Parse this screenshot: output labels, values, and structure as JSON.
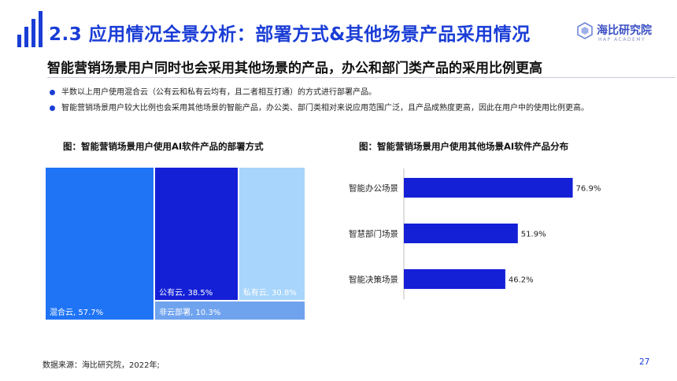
{
  "header": {
    "title": "2.3 应用情况全景分析：部署方式&其他场景产品采用情况",
    "logo_name": "海比研究院",
    "logo_sub": "HAP ACADEMY"
  },
  "subtitle": "智能营销场景用户同时也会采用其他场景的产品，办公和部门类产品的采用比例更高",
  "bullets": [
    "半数以上用户使用混合云（公有云和私有云均有，且二者相互打通）的方式进行部署产品。",
    "智能营销场景用户较大比例也会采用其他场景的智能产品，办公类、部门类相对来说应用范围广泛，且产品成熟度更高，因此在用户中的使用比例更高。"
  ],
  "chart_data": [
    {
      "type": "treemap",
      "title": "图：智能营销场景用户使用AI软件产品的部署方式",
      "items": [
        {
          "label": "混合云, 57.7%",
          "name": "混合云",
          "value": 57.7,
          "color": "#1f74f5"
        },
        {
          "label": "公有云, 38.5%",
          "name": "公有云",
          "value": 38.5,
          "color": "#1420d6"
        },
        {
          "label": "私有云, 30.8%",
          "name": "私有云",
          "value": 30.8,
          "color": "#a8d5fb"
        },
        {
          "label": "非云部署, 10.3%",
          "name": "非云部署",
          "value": 10.3,
          "color": "#6fa3ee"
        }
      ]
    },
    {
      "type": "bar",
      "orientation": "horizontal",
      "title": "图：智能营销场景用户使用其他场景AI软件产品分布",
      "categories": [
        "智能办公场景",
        "智慧部门场景",
        "智能决策场景"
      ],
      "values": [
        76.9,
        51.9,
        46.2
      ],
      "value_labels": [
        "76.9%",
        "51.9%",
        "46.2%"
      ],
      "unit": "%",
      "color": "#1420d6"
    }
  ],
  "footer": {
    "source": "数据来源：海比研究院，2022年;",
    "page": "27"
  },
  "colors": {
    "accent": "#1a3dd6",
    "bar": "#1420d6"
  }
}
